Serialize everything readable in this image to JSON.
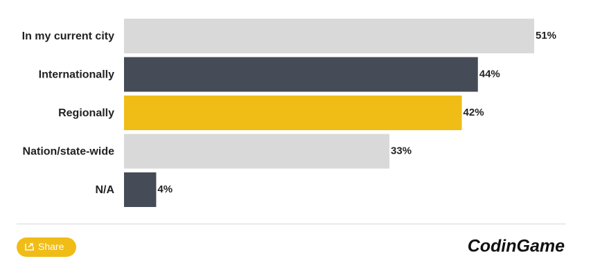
{
  "chart_data": {
    "type": "bar",
    "orientation": "horizontal",
    "categories": [
      "In my current city",
      "Internationally",
      "Regionally",
      "Nation/state-wide",
      "N/A"
    ],
    "values": [
      51,
      44,
      42,
      33,
      4
    ],
    "value_labels": [
      "51%",
      "44%",
      "42%",
      "33%",
      "4%"
    ],
    "colors": [
      "#d9d9d9",
      "#454c57",
      "#f0bc16",
      "#d9d9d9",
      "#454c57"
    ]
  },
  "share_button": "Share",
  "logo": "CodinGame"
}
